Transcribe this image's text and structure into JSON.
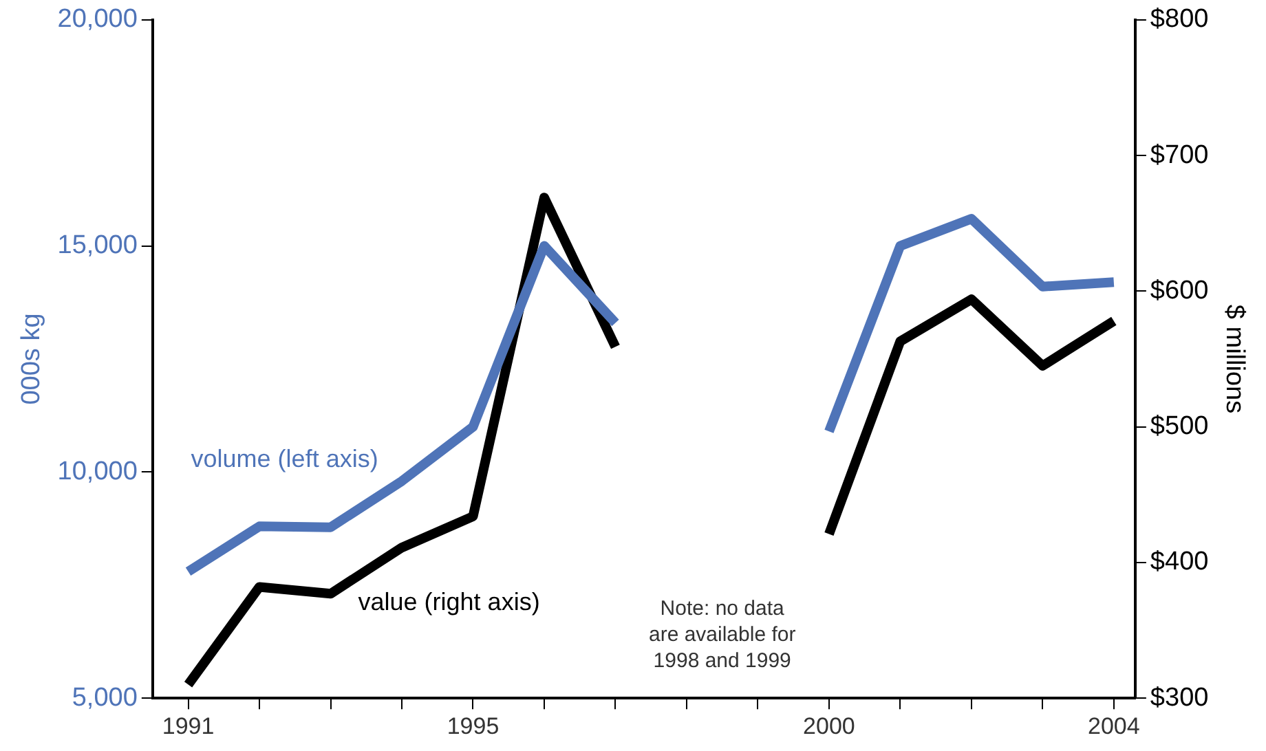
{
  "chart_data": {
    "type": "line",
    "ylabel": "000s kg",
    "y2label": "$ millions",
    "x": [
      1991,
      1992,
      1993,
      1994,
      1995,
      1996,
      1997,
      1998,
      1999,
      2000,
      2001,
      2002,
      2003,
      2004
    ],
    "xlim": [
      1990.5,
      2004.3
    ],
    "xticks": [
      1991,
      {
        "value": 1992,
        "label": null
      },
      {
        "value": 1993,
        "label": null
      },
      {
        "value": 1994,
        "label": null
      },
      1995,
      {
        "value": 1996,
        "label": null
      },
      {
        "value": 1997,
        "label": null
      },
      {
        "value": 1998,
        "label": null
      },
      {
        "value": 1999,
        "label": null
      },
      2000,
      {
        "value": 2001,
        "label": null
      },
      {
        "value": 2002,
        "label": null
      },
      {
        "value": 2003,
        "label": null
      },
      2004
    ],
    "ylim": [
      5000,
      20000
    ],
    "yticks": [
      {
        "value": 5000,
        "label": "5,000"
      },
      {
        "value": 10000,
        "label": "10,000"
      },
      {
        "value": 15000,
        "label": "15,000"
      },
      {
        "value": 20000,
        "label": "20,000"
      }
    ],
    "y2lim": [
      300,
      800
    ],
    "y2ticks": [
      {
        "value": 300,
        "label": "$300"
      },
      {
        "value": 400,
        "label": "$400"
      },
      {
        "value": 500,
        "label": "$500"
      },
      {
        "value": 600,
        "label": "$600"
      },
      {
        "value": 700,
        "label": "$700"
      },
      {
        "value": 800,
        "label": "$800"
      }
    ],
    "series": [
      {
        "name": "volume (left axis)",
        "color": "#4f74b8",
        "values": [
          7800,
          8800,
          8780,
          9800,
          11000,
          15000,
          13300,
          null,
          null,
          10900,
          15000,
          15600,
          14100,
          14200
        ]
      },
      {
        "name": "value (right axis)",
        "color": "#000000",
        "axis": "y2",
        "values": [
          310,
          382,
          377,
          411,
          434,
          669,
          559,
          null,
          null,
          421,
          563,
          594,
          545,
          578
        ]
      }
    ],
    "annotations": [
      "Note: no data\nare available for\n1998 and 1999"
    ],
    "grid": false,
    "legend": false,
    "marker": "none",
    "line_style": "solid"
  }
}
